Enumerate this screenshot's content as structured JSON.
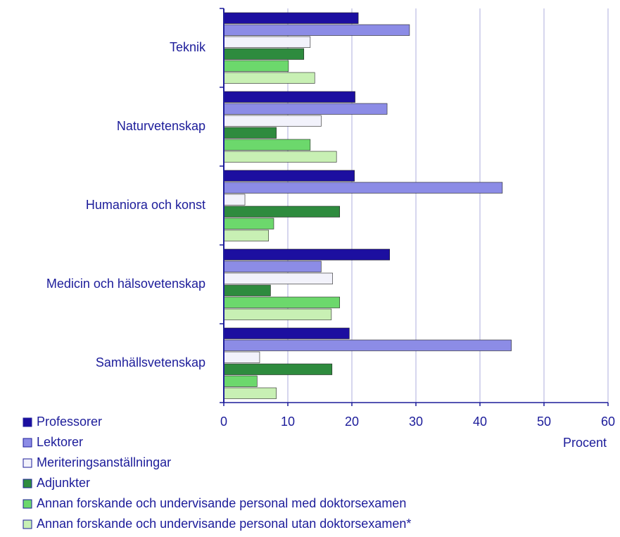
{
  "chart_data": {
    "type": "bar",
    "orientation": "horizontal",
    "x_label": "Procent",
    "categories": [
      "Teknik",
      "Naturvetenskap",
      "Humaniora och konst",
      "Medicin och hälsovetenskap",
      "Samhällsvetenskap"
    ],
    "series": [
      {
        "name": "Professorer",
        "color": "#1c0fa0",
        "values": [
          21.0,
          20.5,
          20.4,
          25.9,
          19.6
        ]
      },
      {
        "name": "Lektorer",
        "color": "#8c8ce6",
        "values": [
          29.0,
          25.5,
          43.5,
          15.2,
          44.9
        ]
      },
      {
        "name": "Meriteringsanställningar",
        "color": "#f2f2fb",
        "values": [
          13.5,
          15.2,
          3.3,
          17.0,
          5.6
        ]
      },
      {
        "name": "Adjunkter",
        "color": "#2e8b3e",
        "values": [
          12.5,
          8.2,
          18.1,
          7.3,
          16.9
        ]
      },
      {
        "name": "Annan forskande och undervisande personal med doktorsexamen",
        "color": "#6cd86c",
        "values": [
          10.1,
          13.5,
          7.8,
          18.1,
          5.2
        ]
      },
      {
        "name": "Annan forskande och undervisande personal utan doktorsexamen*",
        "color": "#c8f0b4",
        "values": [
          14.2,
          17.6,
          7.0,
          16.8,
          8.2
        ]
      }
    ],
    "xlim": [
      0,
      60
    ],
    "xticks": [
      0,
      10,
      20,
      30,
      40,
      50,
      60
    ],
    "grid": true
  }
}
